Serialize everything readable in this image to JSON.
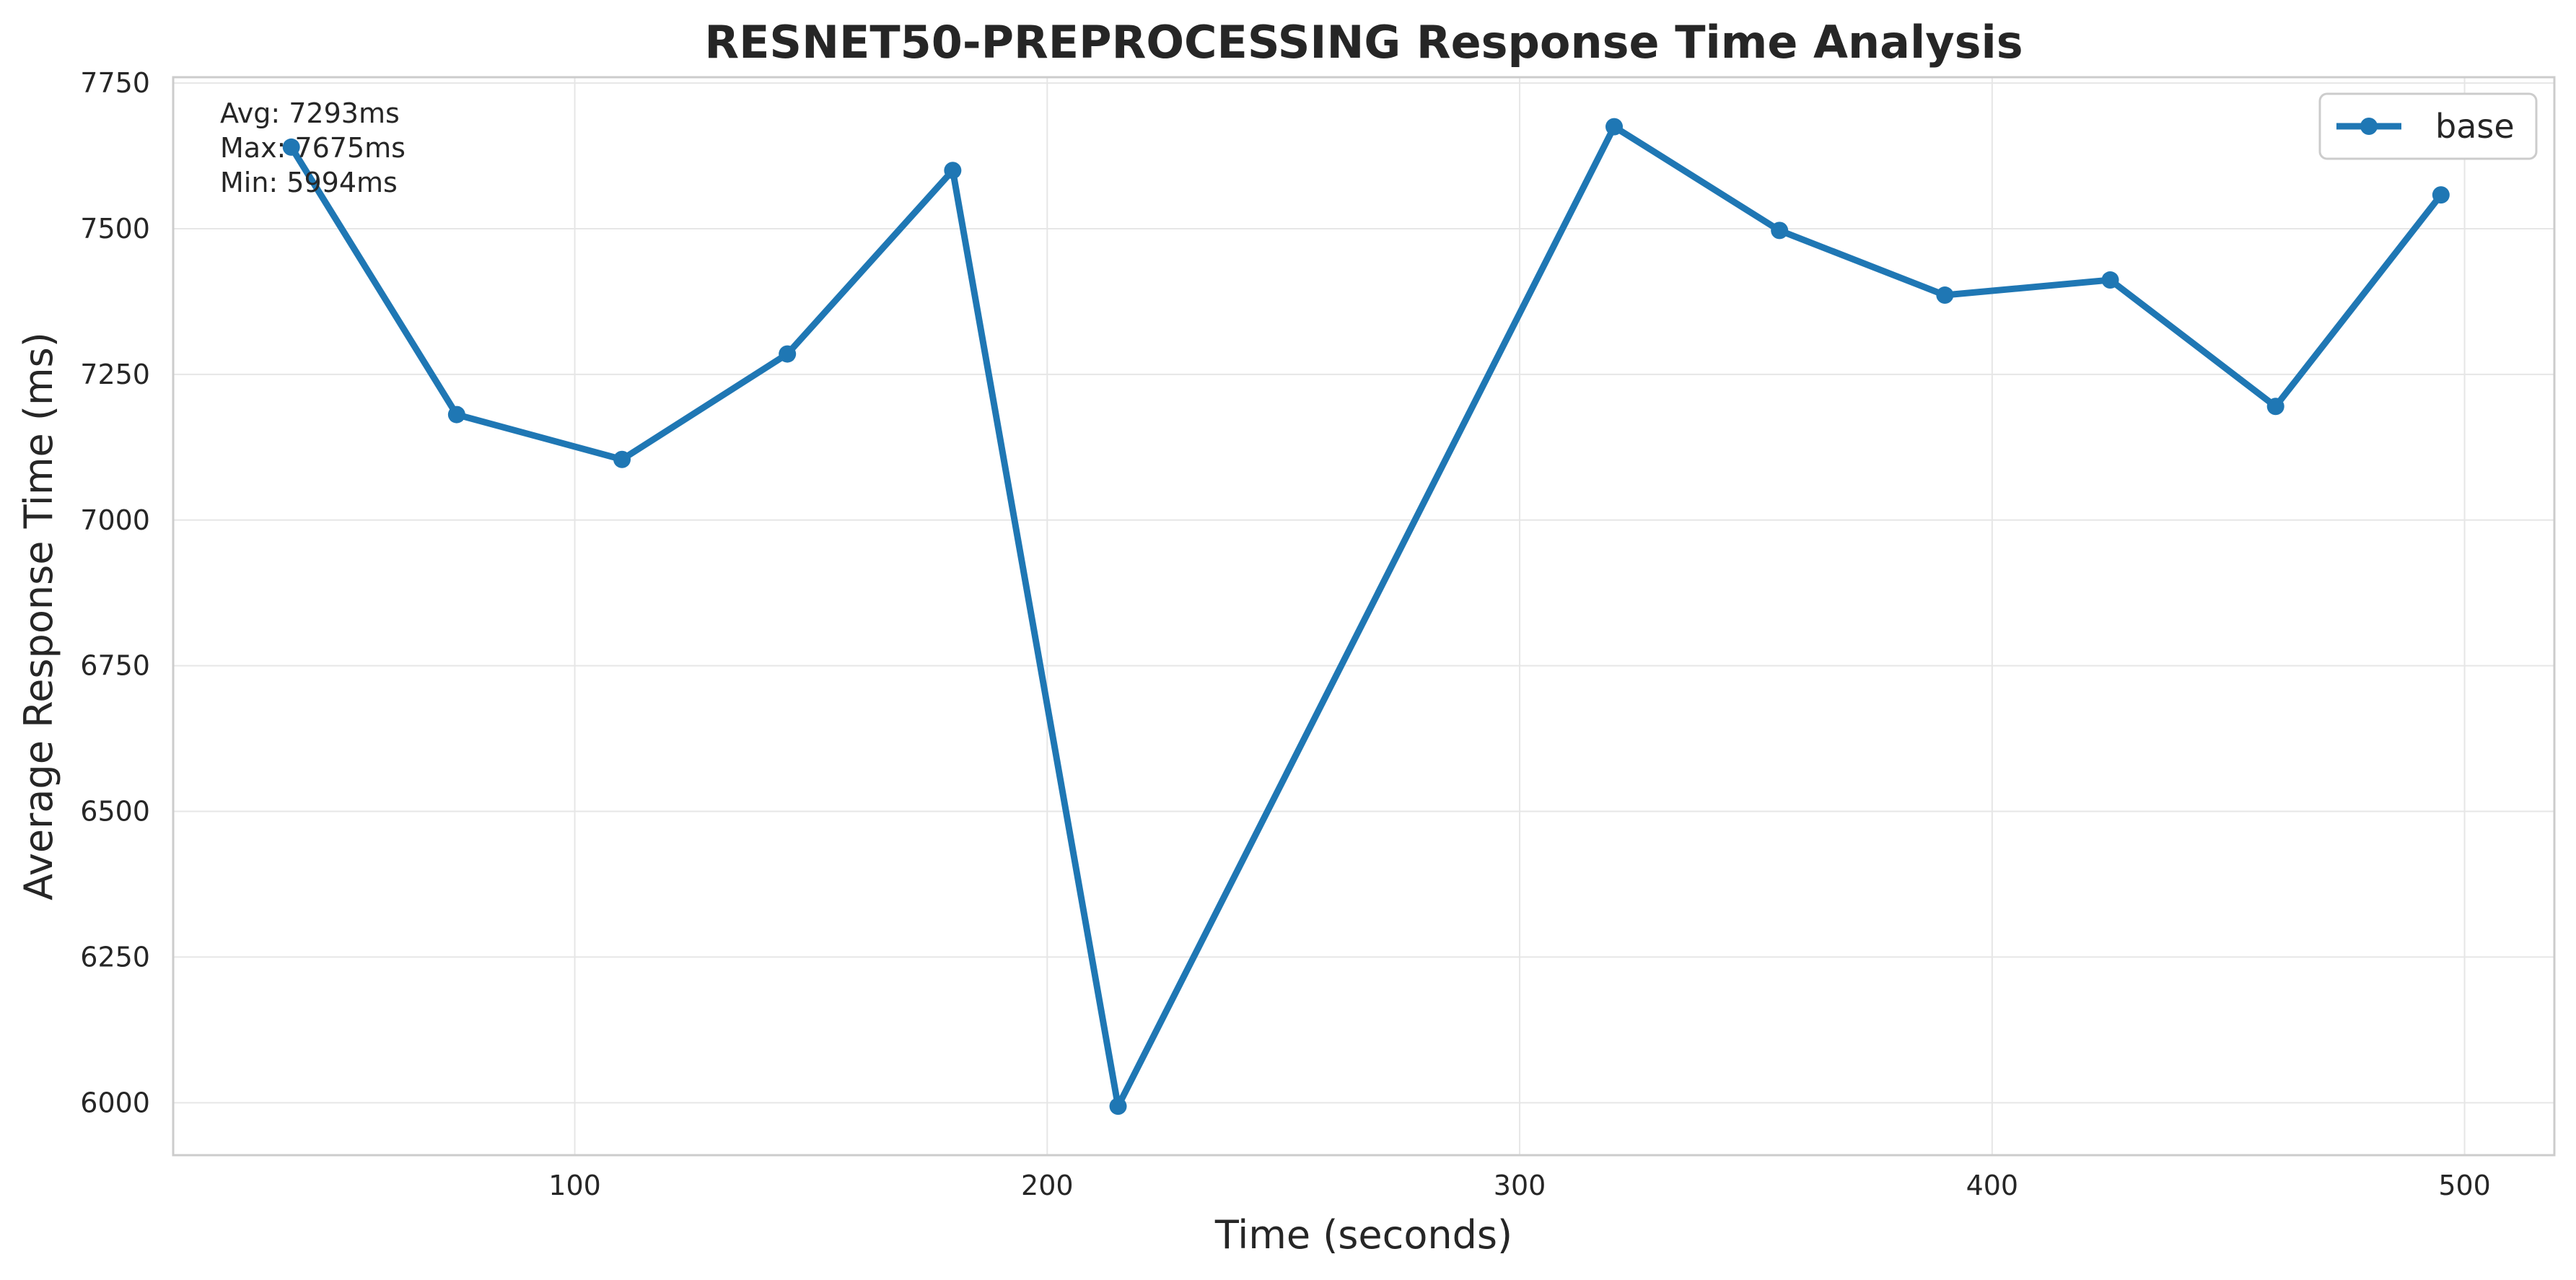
{
  "chart_data": {
    "type": "line",
    "title": "RESNET50-PREPROCESSING Response Time Analysis",
    "xlabel": "Time (seconds)",
    "ylabel": "Average Response Time (ms)",
    "xlim": [
      15,
      519
    ],
    "ylim": [
      5910,
      7760
    ],
    "xticks": [
      100,
      200,
      300,
      400,
      500
    ],
    "yticks": [
      6000,
      6250,
      6500,
      6750,
      7000,
      7250,
      7500,
      7750
    ],
    "grid": true,
    "legend_position": "top-right",
    "series": [
      {
        "name": "base",
        "color": "#1f77b4",
        "points": [
          {
            "x": 40,
            "y": 7640
          },
          {
            "x": 75,
            "y": 7181
          },
          {
            "x": 110,
            "y": 7104
          },
          {
            "x": 145,
            "y": 7285
          },
          {
            "x": 180,
            "y": 7600
          },
          {
            "x": 215,
            "y": 5994
          },
          {
            "x": 320,
            "y": 7675
          },
          {
            "x": 355,
            "y": 7497
          },
          {
            "x": 390,
            "y": 7386
          },
          {
            "x": 425,
            "y": 7412
          },
          {
            "x": 460,
            "y": 7195
          },
          {
            "x": 495,
            "y": 7558
          }
        ]
      }
    ],
    "annotations": {
      "avg": "Avg: 7293ms",
      "max": "Max: 7675ms",
      "min": "Min: 5994ms"
    }
  }
}
